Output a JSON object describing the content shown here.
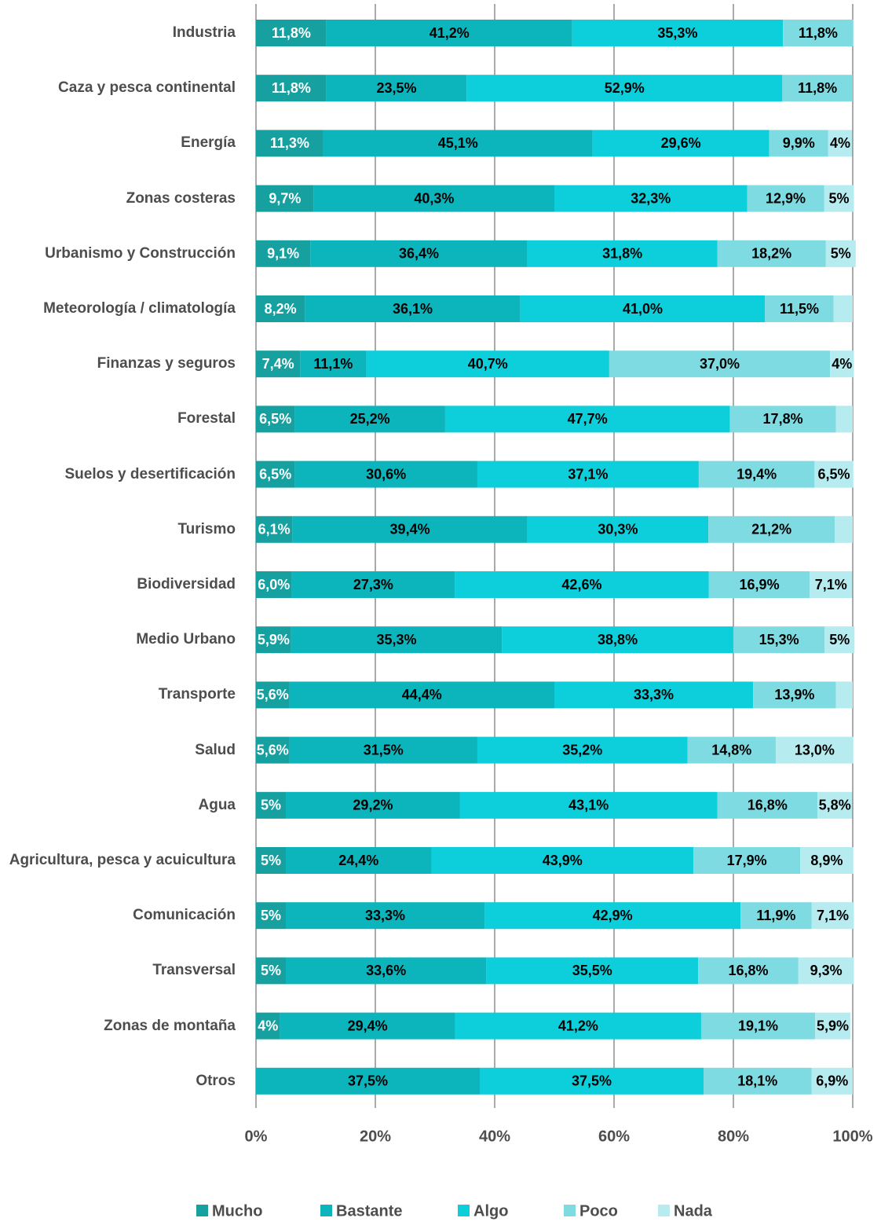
{
  "chart_data": {
    "type": "stacked_barh",
    "categories": [
      "Industria",
      "Caza y pesca continental",
      "Energía",
      "Zonas costeras",
      "Urbanismo y Construcción",
      "Meteorología / climatología",
      "Finanzas y seguros",
      "Forestal",
      "Suelos y desertificación",
      "Turismo",
      "Biodiversidad",
      "Medio Urbano",
      "Transporte",
      "Salud",
      "Agua",
      "Agricultura, pesca y acuicultura",
      "Comunicación",
      "Transversal",
      "Zonas de montaña",
      "Otros"
    ],
    "series": [
      {
        "name": "Mucho",
        "color": "#16a0a0",
        "values": [
          11.8,
          11.8,
          11.3,
          9.7,
          9.1,
          8.2,
          7.4,
          6.5,
          6.5,
          6.1,
          6.0,
          5.9,
          5.6,
          5.6,
          5,
          5,
          5,
          5,
          4,
          0
        ],
        "value_labels": [
          "11,8%",
          "11,8%",
          "11,3%",
          "9,7%",
          "9,1%",
          "8,2%",
          "7,4%",
          "6,5%",
          "6,5%",
          "6,1%",
          "6,0%",
          "5,9%",
          "5,6%",
          "5,6%",
          "5%",
          "5%",
          "5%",
          "5%",
          "4%",
          null
        ]
      },
      {
        "name": "Bastante",
        "color": "#0cb4bc",
        "values": [
          41.2,
          23.5,
          45.1,
          40.3,
          36.4,
          36.1,
          11.1,
          25.2,
          30.6,
          39.4,
          27.3,
          35.3,
          44.4,
          31.5,
          29.2,
          24.4,
          33.3,
          33.6,
          29.4,
          37.5
        ],
        "value_labels": [
          "41,2%",
          "23,5%",
          "45,1%",
          "40,3%",
          "36,4%",
          "36,1%",
          "11,1%",
          "25,2%",
          "30,6%",
          "39,4%",
          "27,3%",
          "35,3%",
          "44,4%",
          "31,5%",
          "29,2%",
          "24,4%",
          "33,3%",
          "33,6%",
          "29,4%",
          "37,5%"
        ]
      },
      {
        "name": "Algo",
        "color": "#0dcfdb",
        "values": [
          35.3,
          52.9,
          29.6,
          32.3,
          31.8,
          41.0,
          40.7,
          47.7,
          37.1,
          30.3,
          42.6,
          38.8,
          33.3,
          35.2,
          43.1,
          43.9,
          42.9,
          35.5,
          41.2,
          37.5
        ],
        "value_labels": [
          "35,3%",
          "52,9%",
          "29,6%",
          "32,3%",
          "31,8%",
          "41,0%",
          "40,7%",
          "47,7%",
          "37,1%",
          "30,3%",
          "42,6%",
          "38,8%",
          "33,3%",
          "35,2%",
          "43,1%",
          "43,9%",
          "42,9%",
          "35,5%",
          "41,2%",
          "37,5%"
        ]
      },
      {
        "name": "Poco",
        "color": "#7fdbe2",
        "values": [
          11.8,
          11.8,
          9.9,
          12.9,
          18.2,
          11.5,
          37.0,
          17.8,
          19.4,
          21.2,
          16.9,
          15.3,
          13.9,
          14.8,
          16.8,
          17.9,
          11.9,
          16.8,
          19.1,
          18.1
        ],
        "value_labels": [
          "11,8%",
          "11,8%",
          "9,9%",
          "12,9%",
          "18,2%",
          "11,5%",
          "37,0%",
          "17,8%",
          "19,4%",
          "21,2%",
          "16,9%",
          "15,3%",
          "13,9%",
          "14,8%",
          "16,8%",
          "17,9%",
          "11,9%",
          "16,8%",
          "19,1%",
          "18,1%"
        ]
      },
      {
        "name": "Nada",
        "color": "#b6ebef",
        "values": [
          0,
          0,
          4,
          5,
          5,
          3.2,
          4,
          2.8,
          6.5,
          3.0,
          7.1,
          5,
          2.8,
          13.0,
          5.8,
          8.9,
          7.1,
          9.3,
          5.9,
          6.9
        ],
        "value_labels": [
          null,
          null,
          "4%",
          "5%",
          "5%",
          null,
          "4%",
          null,
          "6,5%",
          null,
          "7,1%",
          "5%",
          null,
          "13,0%",
          "5,8%",
          "8,9%",
          "7,1%",
          "9,3%",
          "5,9%",
          "6,9%"
        ]
      }
    ],
    "xlim": [
      0,
      100
    ],
    "xticks": [
      {
        "value": 0,
        "label": "0%"
      },
      {
        "value": 20,
        "label": "20%"
      },
      {
        "value": 40,
        "label": "40%"
      },
      {
        "value": 60,
        "label": "60%"
      },
      {
        "value": 80,
        "label": "80%"
      },
      {
        "value": 100,
        "label": "100%"
      }
    ],
    "grid": true,
    "legend": "bottom"
  }
}
